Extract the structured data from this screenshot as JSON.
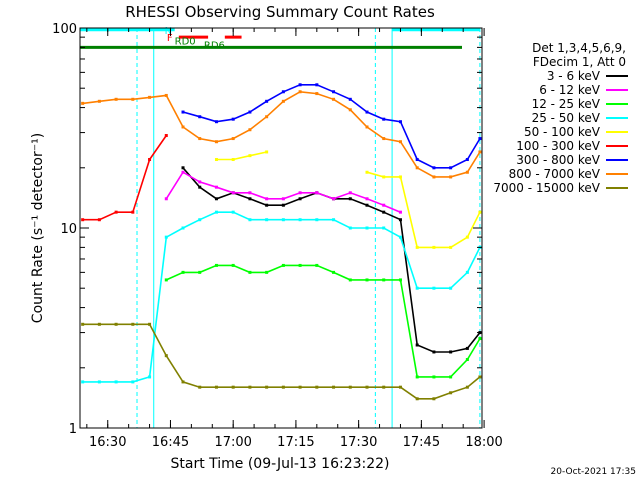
{
  "chart_data": {
    "type": "line",
    "title": "RHESSI Observing Summary Count Rates",
    "xlabel": "Start Time (09-Jul-13 16:23:22)",
    "ylabel": "Count Rate (s⁻¹ detector⁻¹)",
    "y_scale": "log",
    "ylim": [
      1,
      100
    ],
    "xlim": [
      "16:23:22",
      "17:59:30"
    ],
    "x_ticks": [
      "16:30",
      "16:45",
      "17:00",
      "17:15",
      "17:30",
      "17:45",
      "18:00"
    ],
    "y_ticks": [
      "1",
      "10",
      "100"
    ],
    "grid": false,
    "legend_position": "right",
    "legend_header": [
      "Det 1,3,4,5,6,9,",
      "FDecim 1, Att 0"
    ],
    "x": [
      "16:24",
      "16:28",
      "16:32",
      "16:36",
      "16:40",
      "16:44",
      "16:48",
      "16:52",
      "16:56",
      "17:00",
      "17:04",
      "17:08",
      "17:12",
      "17:16",
      "17:20",
      "17:24",
      "17:28",
      "17:32",
      "17:36",
      "17:40",
      "17:44",
      "17:48",
      "17:52",
      "17:56",
      "17:59"
    ],
    "series": [
      {
        "name": "3 - 6 keV",
        "color": "#000000",
        "values": [
          null,
          null,
          null,
          null,
          null,
          null,
          20,
          16,
          14,
          15,
          14,
          13,
          13,
          14,
          15,
          14,
          14,
          13,
          12,
          11,
          2.6,
          2.4,
          2.4,
          2.5,
          3.0
        ]
      },
      {
        "name": "6 - 12 keV",
        "color": "#ff00ff",
        "values": [
          null,
          null,
          null,
          null,
          null,
          14,
          19,
          17,
          16,
          15,
          15,
          14,
          14,
          15,
          15,
          14,
          15,
          14,
          13,
          12,
          null,
          null,
          null,
          null,
          null
        ]
      },
      {
        "name": "12 - 25 keV",
        "color": "#00ff00",
        "values": [
          null,
          null,
          null,
          null,
          null,
          5.5,
          6,
          6,
          6.5,
          6.5,
          6,
          6,
          6.5,
          6.5,
          6.5,
          6,
          5.5,
          5.5,
          5.5,
          5.5,
          1.8,
          1.8,
          1.8,
          2.2,
          2.8
        ]
      },
      {
        "name": "25 - 50 keV",
        "color": "#00ffff",
        "values": [
          1.7,
          1.7,
          1.7,
          1.7,
          1.8,
          9,
          10,
          11,
          12,
          12,
          11,
          11,
          11,
          11,
          11,
          11,
          10,
          10,
          10,
          9,
          5,
          5,
          5,
          6,
          8
        ]
      },
      {
        "name": "50 - 100 keV",
        "color": "#ffff00",
        "values": [
          null,
          null,
          null,
          null,
          null,
          null,
          null,
          null,
          22,
          22,
          23,
          24,
          null,
          null,
          null,
          null,
          null,
          19,
          18,
          18,
          8,
          8,
          8,
          9,
          12
        ]
      },
      {
        "name": "100 - 300 keV",
        "color": "#ff0000",
        "values": [
          11,
          11,
          12,
          12,
          22,
          29,
          null,
          null,
          null,
          null,
          null,
          null,
          null,
          null,
          null,
          null,
          null,
          null,
          null,
          null,
          null,
          null,
          null,
          null,
          null
        ]
      },
      {
        "name": "300 - 800 keV",
        "color": "#0000ff",
        "values": [
          null,
          null,
          null,
          null,
          null,
          null,
          38,
          36,
          34,
          35,
          38,
          43,
          48,
          52,
          52,
          48,
          44,
          38,
          35,
          34,
          22,
          20,
          20,
          22,
          28
        ]
      },
      {
        "name": "800 - 7000 keV",
        "color": "#ff8000",
        "values": [
          42,
          43,
          44,
          44,
          45,
          46,
          32,
          28,
          27,
          28,
          31,
          36,
          43,
          48,
          47,
          44,
          39,
          32,
          28,
          27,
          20,
          18,
          18,
          19,
          24
        ]
      },
      {
        "name": "7000 - 15000 keV",
        "color": "#808000",
        "values": [
          3.3,
          3.3,
          3.3,
          3.3,
          3.3,
          2.3,
          1.7,
          1.6,
          1.6,
          1.6,
          1.6,
          1.6,
          1.6,
          1.6,
          1.6,
          1.6,
          1.6,
          1.6,
          1.6,
          1.6,
          1.4,
          1.4,
          1.5,
          1.6,
          1.8
        ]
      }
    ],
    "flag_lines": [
      {
        "label": "N",
        "color": "#00ffff",
        "value": 98
      },
      {
        "label": "F",
        "color": "#ff0000",
        "value": 90
      },
      {
        "label": "RD0",
        "color": "#008000",
        "value": 80
      },
      {
        "label": "RD6",
        "color": "#008000",
        "value": 80
      }
    ],
    "eclipse_markers": [
      "16:23:22",
      "16:37",
      "16:41",
      "17:34",
      "17:38",
      "17:59"
    ],
    "footer_date": "20-Oct-2021 17:35"
  }
}
